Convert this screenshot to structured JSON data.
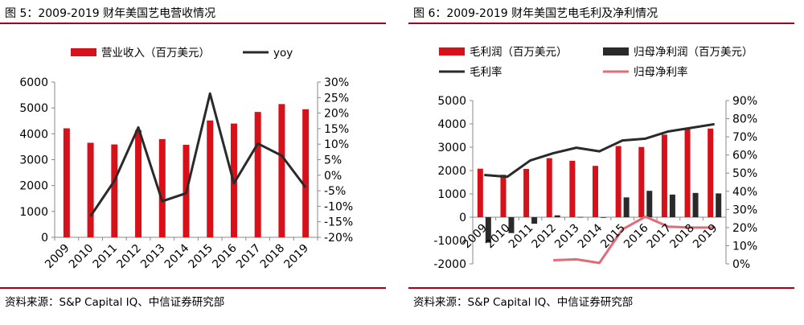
{
  "left": {
    "title": "图 5：2009-2019 财年美国艺电营收情况",
    "source": "资料来源：S&P Capital IQ、中信证券研究部"
  },
  "right": {
    "title": "图 6：2009-2019 财年美国艺电毛利及净利情况",
    "source": "资料来源：S&P Capital IQ、中信证券研究部"
  },
  "colors": {
    "red": "#d7111a",
    "dark": "#2a2a2a",
    "pink": "#e06c7a",
    "rule": "#a5001b"
  },
  "chart_data": [
    {
      "type": "bar",
      "categories": [
        "2009",
        "2010",
        "2011",
        "2012",
        "2013",
        "2014",
        "2015",
        "2016",
        "2017",
        "2018",
        "2019"
      ],
      "series": [
        {
          "name": "营业收入（百万美元）",
          "axis": "left",
          "kind": "bar",
          "values": [
            4212,
            3654,
            3589,
            4143,
            3797,
            3575,
            4515,
            4396,
            4845,
            5150,
            4950
          ]
        },
        {
          "name": "yoy",
          "axis": "right",
          "kind": "line",
          "values": [
            null,
            -13.2,
            -1.8,
            15.4,
            -8.4,
            -5.8,
            26.3,
            -2.6,
            10.2,
            6.3,
            -3.9
          ]
        }
      ],
      "yleft": {
        "min": 0,
        "max": 6000,
        "step": 1000,
        "ticks": [
          "0",
          "1000",
          "2000",
          "3000",
          "4000",
          "5000",
          "6000"
        ]
      },
      "yright": {
        "min": -20,
        "max": 30,
        "step": 5,
        "ticks": [
          "-20%",
          "-15%",
          "-10%",
          "-5%",
          "0%",
          "5%",
          "10%",
          "15%",
          "20%",
          "25%",
          "30%"
        ]
      }
    },
    {
      "type": "bar",
      "categories": [
        "2009",
        "2010",
        "2011",
        "2012",
        "2013",
        "2014",
        "2015",
        "2016",
        "2017",
        "2018",
        "2019"
      ],
      "series": [
        {
          "name": "毛利润（百万美元）",
          "axis": "left",
          "kind": "bar",
          "values": [
            2080,
            1820,
            2070,
            2530,
            2420,
            2200,
            3050,
            3010,
            3540,
            3830,
            3800
          ]
        },
        {
          "name": "归母净利润（百万美元）",
          "axis": "left",
          "kind": "bar",
          "values": [
            -1090,
            -680,
            -280,
            80,
            10,
            -10,
            850,
            1130,
            970,
            1040,
            1020
          ]
        },
        {
          "name": "毛利率",
          "axis": "right",
          "kind": "line",
          "values": [
            49,
            48,
            57,
            61,
            64,
            62,
            68,
            69,
            73,
            75,
            77
          ]
        },
        {
          "name": "归母净利率",
          "axis": "right",
          "kind": "line",
          "values": [
            null,
            null,
            null,
            2,
            2.5,
            0.5,
            19,
            26,
            20.5,
            20,
            20
          ]
        }
      ],
      "yleft": {
        "min": -2000,
        "max": 5000,
        "step": 1000,
        "ticks": [
          "-2000",
          "-1000",
          "0",
          "1000",
          "2000",
          "3000",
          "4000",
          "5000"
        ]
      },
      "yright": {
        "min": 0,
        "max": 90,
        "step": 10,
        "ticks": [
          "0%",
          "10%",
          "20%",
          "30%",
          "40%",
          "50%",
          "60%",
          "70%",
          "80%",
          "90%"
        ]
      }
    }
  ]
}
